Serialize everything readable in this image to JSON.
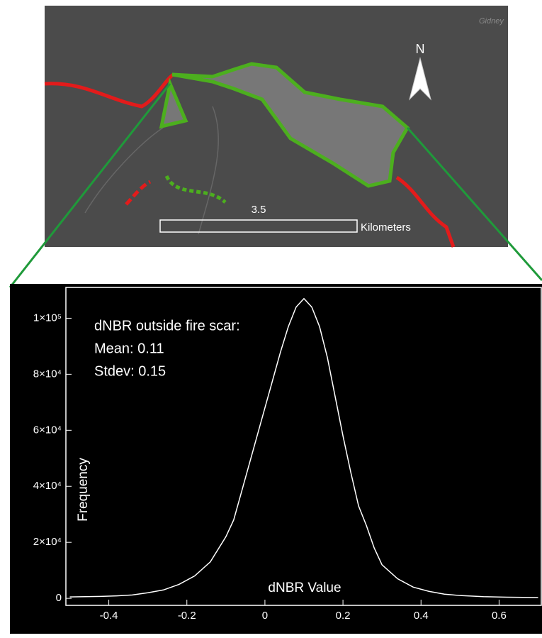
{
  "map": {
    "place_label": "Gidney",
    "north_label": "N",
    "scale_value": "3.5",
    "scale_unit": "Kilometers"
  },
  "chart_data": {
    "type": "line",
    "annotations": [
      "dNBR outside fire scar:",
      "Mean: 0.11",
      "Stdev: 0.15"
    ],
    "x_label": "dNBR Value",
    "y_label": "Frequency",
    "x": [
      -0.5,
      -0.46,
      -0.42,
      -0.38,
      -0.34,
      -0.3,
      -0.26,
      -0.22,
      -0.18,
      -0.14,
      -0.1,
      -0.08,
      -0.06,
      -0.04,
      -0.02,
      0,
      0.02,
      0.04,
      0.06,
      0.08,
      0.1,
      0.12,
      0.14,
      0.16,
      0.18,
      0.2,
      0.22,
      0.24,
      0.26,
      0.28,
      0.3,
      0.34,
      0.38,
      0.42,
      0.46,
      0.5,
      0.56,
      0.62,
      0.7
    ],
    "values": [
      500,
      600,
      700,
      900,
      1200,
      2000,
      3000,
      5000,
      8000,
      13000,
      22000,
      28000,
      38000,
      48000,
      58000,
      68000,
      78000,
      88000,
      97000,
      104000,
      107000,
      104000,
      97000,
      86000,
      72000,
      58000,
      45000,
      33000,
      26000,
      18000,
      12000,
      7000,
      4000,
      2500,
      1500,
      1000,
      600,
      400,
      300
    ],
    "color": "#ffffff",
    "xlim": [
      -0.51,
      0.71
    ],
    "ylim": [
      -2500,
      111000
    ],
    "xticks": [
      -0.4,
      -0.2,
      0.0,
      0.2,
      0.4,
      0.6
    ],
    "yticks": [
      0,
      {
        "value": 20000,
        "label": "2×10⁴"
      },
      {
        "value": 40000,
        "label": "4×10⁴"
      },
      {
        "value": 60000,
        "label": "6×10⁴"
      },
      {
        "value": 80000,
        "label": "8×10⁴"
      },
      {
        "value": 100000,
        "label": "1×10⁵"
      }
    ]
  }
}
